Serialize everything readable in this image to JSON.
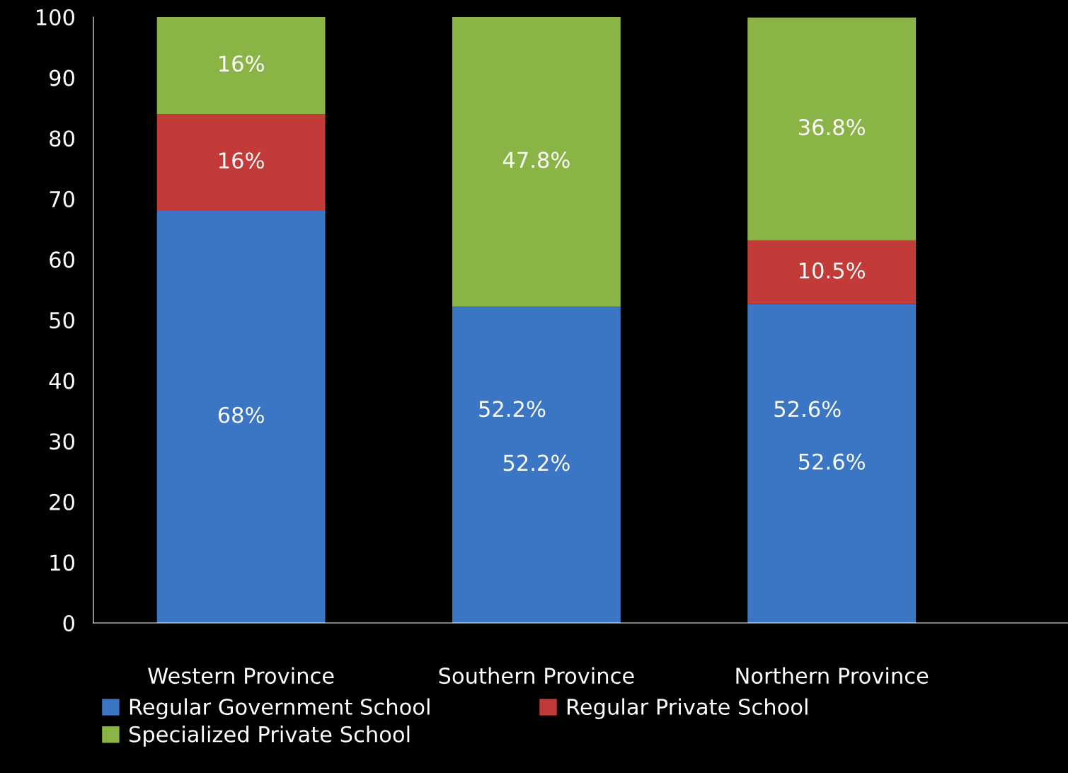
{
  "chart_data": {
    "type": "bar",
    "stacked": true,
    "categories": [
      "Western Province",
      "Southern Province",
      "Northern Province"
    ],
    "series": [
      {
        "name": "Regular Government School",
        "color": "#3a76c4",
        "values": [
          68,
          52.2,
          52.6
        ],
        "value_labels": [
          "68%",
          "52.2%",
          "52.6%"
        ]
      },
      {
        "name": "Regular Private School",
        "color": "#c23b38",
        "values": [
          16,
          0,
          10.5
        ],
        "value_labels": [
          "16%",
          null,
          "10.5%"
        ]
      },
      {
        "name": "Specialized Private School",
        "color": "#8ab446",
        "values": [
          16,
          47.8,
          36.8
        ],
        "value_labels": [
          "16%",
          "47.8%",
          "36.8%"
        ]
      }
    ],
    "annotations": [
      "52.2%",
      "52.6%"
    ],
    "ylim": [
      0,
      100
    ],
    "yticks": [
      0,
      10,
      20,
      30,
      40,
      50,
      60,
      70,
      80,
      90,
      100
    ],
    "grid": false,
    "legend": "bottom"
  }
}
